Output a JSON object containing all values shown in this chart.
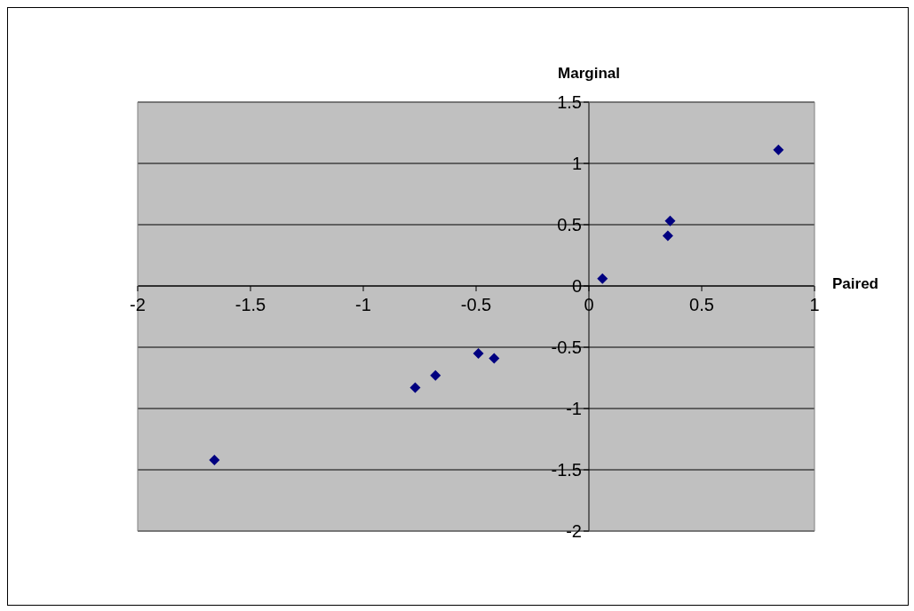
{
  "chart_data": {
    "type": "scatter",
    "xlabel": "Paired",
    "ylabel": "Marginal",
    "x": [
      -1.66,
      -0.77,
      -0.68,
      -0.49,
      -0.42,
      0.06,
      0.35,
      0.36,
      0.84
    ],
    "values": [
      -1.42,
      -0.83,
      -0.73,
      -0.55,
      -0.59,
      0.06,
      0.41,
      0.53,
      1.11
    ],
    "color": "#000080",
    "marker": "diamond",
    "xlim": [
      -2,
      1
    ],
    "xticks": [
      -2,
      -1.5,
      -1,
      -0.5,
      0,
      0.5,
      1
    ],
    "ylim": [
      -2,
      1.5
    ],
    "yticks": [
      -2,
      -1.5,
      -1,
      -0.5,
      0,
      0.5,
      1,
      1.5
    ],
    "grid": "y"
  }
}
